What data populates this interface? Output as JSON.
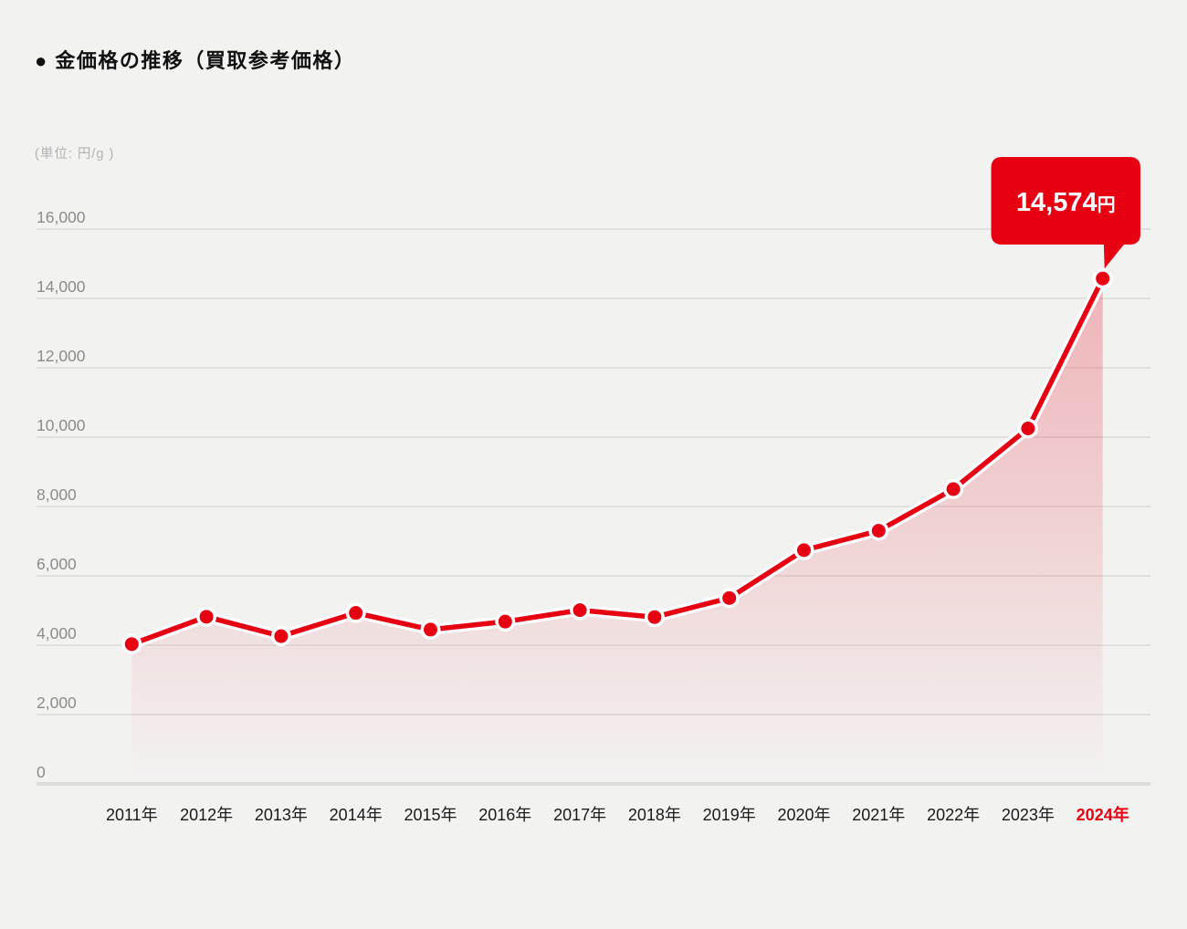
{
  "header": {
    "title": "● 金価格の推移（買取参考価格）",
    "unit_label": "(単位: 円/g )"
  },
  "colors": {
    "background": "#f2f2f1",
    "accent_red": "#e60012",
    "grid_line": "#d9d9d8",
    "zero_axis_line": "#dedddc",
    "y_label": "#8c8c8c",
    "x_label": "#1a1a1a",
    "callout_background": "#e60012",
    "callout_text": "#ffffff",
    "point_halo": "#ffffff"
  },
  "chart_data": {
    "type": "line",
    "title": "金価格の推移（買取参考価格）",
    "unit": "円/g",
    "categories": [
      "2011年",
      "2012年",
      "2013年",
      "2014年",
      "2015年",
      "2016年",
      "2017年",
      "2018年",
      "2019年",
      "2020年",
      "2021年",
      "2022年",
      "2023年",
      "2024年"
    ],
    "values": [
      4030,
      4820,
      4260,
      4930,
      4450,
      4680,
      5010,
      4810,
      5360,
      6740,
      7300,
      8500,
      10250,
      14574
    ],
    "ylim": [
      0,
      16000
    ],
    "ytick_interval": 2000,
    "yticks": [
      {
        "value": 0,
        "label": "0"
      },
      {
        "value": 2000,
        "label": "2,000"
      },
      {
        "value": 4000,
        "label": "4,000"
      },
      {
        "value": 6000,
        "label": "6,000"
      },
      {
        "value": 8000,
        "label": "8,000"
      },
      {
        "value": 10000,
        "label": "10,000"
      },
      {
        "value": 12000,
        "label": "12,000"
      },
      {
        "value": 14000,
        "label": "14,000"
      },
      {
        "value": 16000,
        "label": "16,000"
      }
    ],
    "grid": true,
    "legend": false,
    "area_fill": true,
    "highlight_category": "2024年",
    "callout": {
      "number": "14,574",
      "suffix": "円",
      "value": 14574,
      "category": "2024年"
    }
  }
}
